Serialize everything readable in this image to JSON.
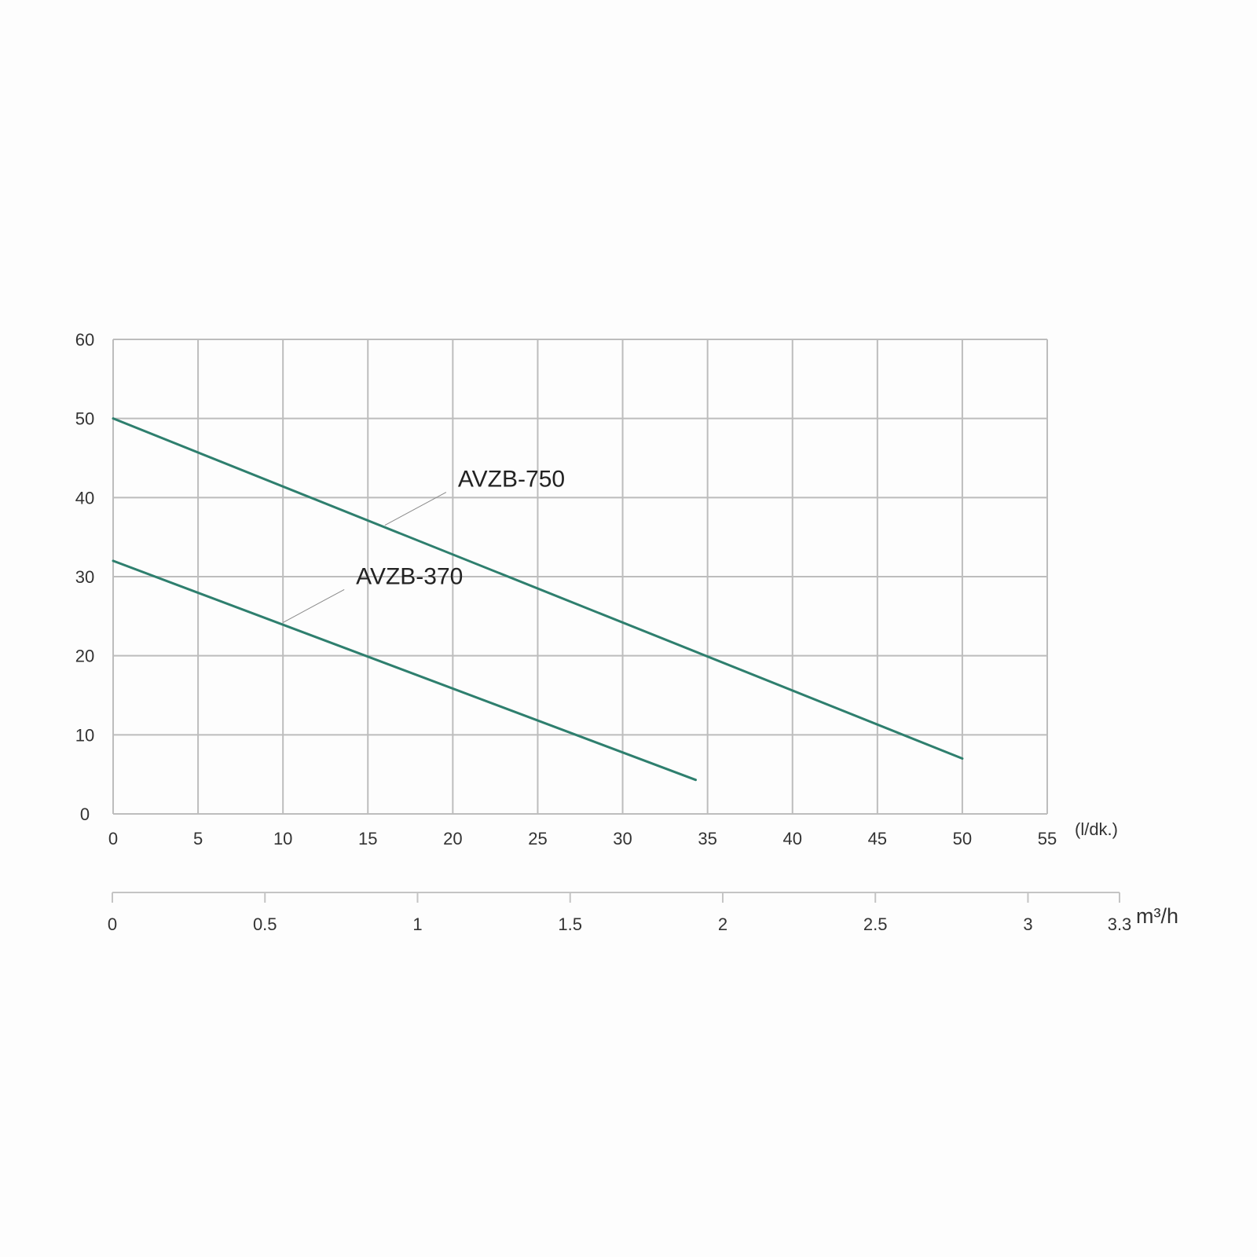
{
  "chart_data": {
    "type": "line",
    "title": "",
    "xlabel": "(l/dk.)",
    "ylabel": "",
    "xlim": [
      0,
      55
    ],
    "ylim": [
      0,
      60
    ],
    "x_ticks": [
      0,
      5,
      10,
      15,
      20,
      25,
      30,
      35,
      40,
      45,
      50,
      55
    ],
    "y_ticks": [
      0,
      10,
      20,
      30,
      40,
      50,
      60
    ],
    "grid": true,
    "secondary_x_axis": {
      "unit": "m³/h",
      "ticks": [
        {
          "label": "0",
          "value": 0
        },
        {
          "label": "0.5",
          "value": 0.5
        },
        {
          "label": "1",
          "value": 1
        },
        {
          "label": "1.5",
          "value": 1.5
        },
        {
          "label": "2",
          "value": 2
        },
        {
          "label": "2.5",
          "value": 2.5
        },
        {
          "label": "3",
          "value": 3
        },
        {
          "label": "3.3",
          "value": 3.3
        }
      ]
    },
    "series": [
      {
        "name": "AVZB-750",
        "x": [
          0,
          50
        ],
        "y": [
          50,
          7
        ]
      },
      {
        "name": "AVZB-370",
        "x": [
          0,
          34.3
        ],
        "y": [
          32,
          4.3
        ]
      }
    ],
    "annotations": [
      {
        "series": "AVZB-750",
        "text": "AVZB-750",
        "point_x": 16,
        "point_y": 36.5
      },
      {
        "series": "AVZB-370",
        "text": "AVZB-370",
        "point_x": 10,
        "point_y": 24.2
      }
    ],
    "line_color": "#2e7f6e",
    "grid_color": "#bdbdbd"
  }
}
